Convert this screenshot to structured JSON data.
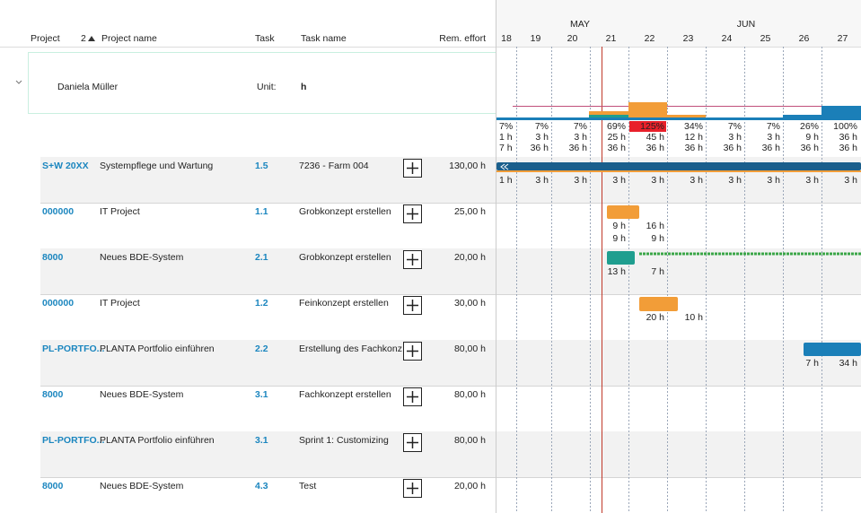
{
  "header": {
    "project": "Project",
    "sort": "2",
    "project_name": "Project name",
    "task": "Task",
    "task_name": "Task name",
    "rem_effort": "Rem. effort"
  },
  "timeline": {
    "months": [
      "MAY",
      "JUN"
    ],
    "days": [
      "18",
      "19",
      "20",
      "21",
      "22",
      "23",
      "24",
      "25",
      "26",
      "27"
    ]
  },
  "resource": {
    "name": "Daniela Müller",
    "unit_label": "Unit:",
    "unit": "h"
  },
  "summary": {
    "load_percent": [
      "7%",
      "7%",
      "7%",
      "69%",
      "125%",
      "34%",
      "7%",
      "7%",
      "26%",
      "100%"
    ],
    "load_hours": [
      "1 h",
      "3 h",
      "3 h",
      "25 h",
      "45 h",
      "12 h",
      "3 h",
      "3 h",
      "9 h",
      "36 h"
    ],
    "capacity_hours": [
      "7 h",
      "36 h",
      "36 h",
      "36 h",
      "36 h",
      "36 h",
      "36 h",
      "36 h",
      "36 h",
      "36 h"
    ]
  },
  "rows": [
    {
      "project": "S+W 20XX",
      "project_name": "Systempflege und Wartung",
      "task": "1.5",
      "task_name": "7236 - Farm 004",
      "rem_effort": "130,00 h",
      "planned": [
        "1 h",
        "3 h",
        "3 h",
        "3 h",
        "3 h",
        "3 h",
        "3 h",
        "3 h",
        "3 h",
        "3 h"
      ]
    },
    {
      "project": "000000",
      "project_name": "IT Project",
      "task": "1.1",
      "task_name": "Grobkonzept erstellen",
      "rem_effort": "25,00 h",
      "planned": [
        null,
        null,
        null,
        "9 h",
        "16 h",
        null,
        null,
        null,
        null,
        null
      ],
      "actual": [
        null,
        null,
        null,
        "9 h",
        "9 h",
        null,
        null,
        null,
        null,
        null
      ]
    },
    {
      "project": "8000",
      "project_name": "Neues BDE-System",
      "task": "2.1",
      "task_name": "Grobkonzept erstellen",
      "rem_effort": "20,00 h",
      "planned": [
        null,
        null,
        null,
        "13 h",
        "7 h",
        null,
        null,
        null,
        null,
        null
      ]
    },
    {
      "project": "000000",
      "project_name": "IT Project",
      "task": "1.2",
      "task_name": "Feinkonzept erstellen",
      "rem_effort": "30,00 h",
      "planned": [
        null,
        null,
        null,
        null,
        "20 h",
        "10 h",
        null,
        null,
        null,
        null
      ]
    },
    {
      "project": "PL-PORTFO...",
      "project_name": "PLANTA Portfolio einführen",
      "task": "2.2",
      "task_name": "Erstellung des Fachkonz...",
      "rem_effort": "80,00 h",
      "planned": [
        null,
        null,
        null,
        null,
        null,
        null,
        null,
        null,
        "7 h",
        "34 h"
      ]
    },
    {
      "project": "8000",
      "project_name": "Neues BDE-System",
      "task": "3.1",
      "task_name": "Fachkonzept erstellen",
      "rem_effort": "80,00 h"
    },
    {
      "project": "PL-PORTFO...",
      "project_name": "PLANTA Portfolio einführen",
      "task": "3.1",
      "task_name": "Sprint 1: Customizing",
      "rem_effort": "80,00 h"
    },
    {
      "project": "8000",
      "project_name": "Neues BDE-System",
      "task": "4.3",
      "task_name": "Test",
      "rem_effort": "20,00 h"
    }
  ]
}
